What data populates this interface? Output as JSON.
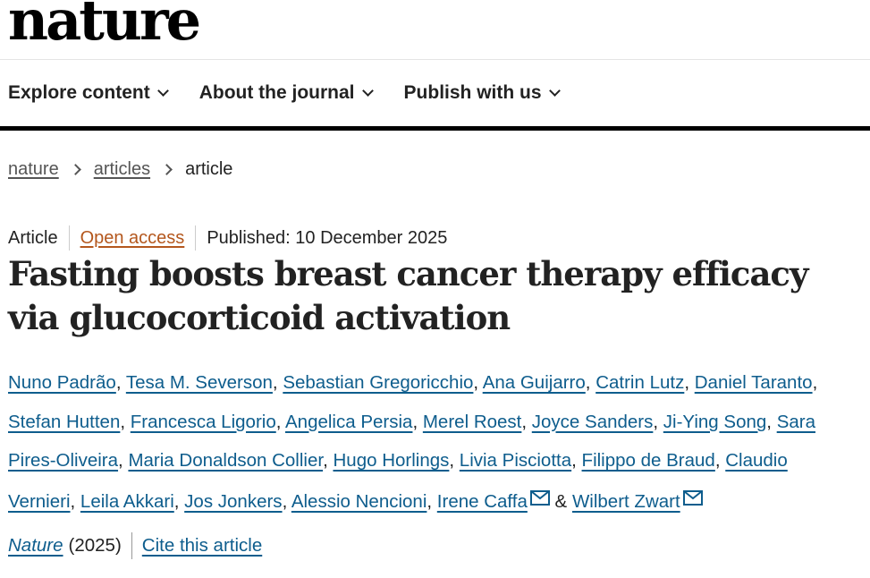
{
  "site": {
    "logo_text": "nature"
  },
  "nav": {
    "items": [
      {
        "label": "Explore content"
      },
      {
        "label": "About the journal"
      },
      {
        "label": "Publish with us"
      }
    ]
  },
  "breadcrumb": {
    "home": "nature",
    "section": "articles",
    "current": "article"
  },
  "article": {
    "type": "Article",
    "access": "Open access",
    "published": "Published: 10 December 2025",
    "title": "Fasting boosts breast cancer therapy efficacy via glucocorticoid activation",
    "authors": [
      "Nuno Padrão",
      "Tesa M. Severson",
      "Sebastian Gregoricchio",
      "Ana Guijarro",
      "Catrin Lutz",
      "Daniel Taranto",
      "Stefan Hutten",
      "Francesca Ligorio",
      "Angelica Persia",
      "Merel Roest",
      "Joyce Sanders",
      "Ji-Ying Song",
      "Sara Pires-Oliveira",
      "Maria Donaldson Collier",
      "Hugo Horlings",
      "Livia Pisciotta",
      "Filippo de Braud",
      "Claudio Vernieri",
      "Leila Akkari",
      "Jos Jonkers",
      "Alessio Nencioni",
      "Irene Caffa",
      "Wilbert Zwart"
    ],
    "separator": ", ",
    "last_separator": " & ",
    "corresponding": [
      "Irene Caffa",
      "Wilbert Zwart"
    ],
    "journal": "Nature",
    "year": "(2025)",
    "cite_label": "Cite this article"
  },
  "colors": {
    "link": "#0e5d8d",
    "open_access": "#b4571d",
    "nav_rule": "#000000"
  },
  "icons": {
    "nav_dropdown": "chevron-down-icon",
    "breadcrumb_separator": "chevron-right-icon",
    "corresponding_author": "mail-icon"
  }
}
